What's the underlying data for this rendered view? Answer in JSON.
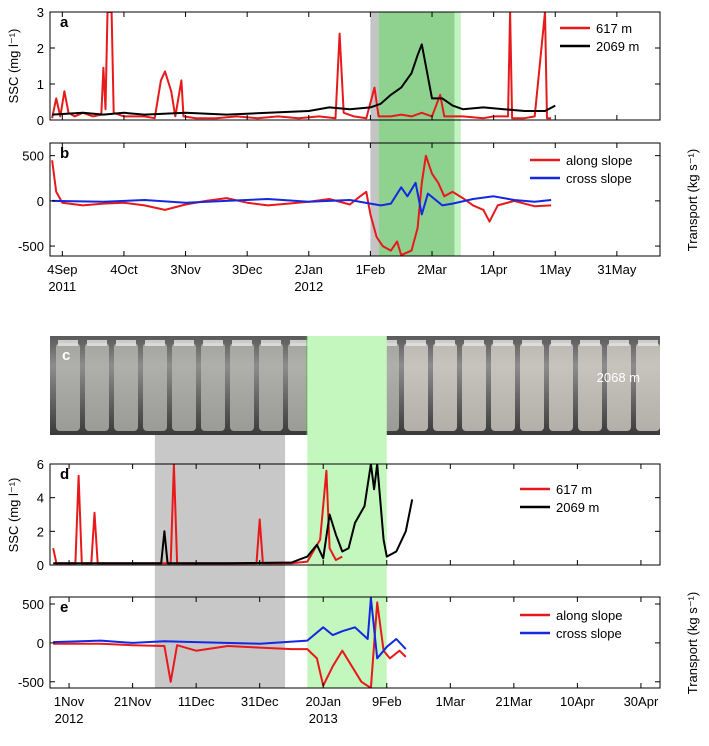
{
  "chart_data": [
    {
      "type": "line",
      "label": "a",
      "ylabel": "SSC (mg l⁻¹)",
      "xlim": [
        -6,
        291
      ],
      "ylim": [
        0,
        3
      ],
      "yticks": [
        0,
        1,
        2,
        3
      ],
      "legend": "upper right",
      "shading": [
        {
          "x0": 150,
          "x1": 154,
          "color": "#c4c4c4"
        },
        {
          "x0": 154,
          "x1": 191,
          "color": "#8fd18f"
        },
        {
          "x0": 191,
          "x1": 194,
          "color": "#c2f3c2"
        }
      ],
      "series": [
        {
          "name": "617 m",
          "color": "#e8191b",
          "x": [
            -5,
            -3,
            -1,
            1,
            3,
            6,
            10,
            15,
            19,
            20,
            21,
            22,
            24,
            25,
            30,
            35,
            40,
            45,
            48,
            50,
            53,
            55,
            58,
            59,
            65,
            75,
            85,
            95,
            105,
            115,
            125,
            133,
            135,
            137,
            142,
            148,
            152,
            154,
            160,
            165,
            170,
            175,
            180,
            184,
            186,
            195,
            205,
            210,
            217,
            218,
            219,
            225,
            230,
            235,
            236,
            238
          ],
          "values": [
            0.05,
            0.6,
            0.1,
            0.8,
            0.2,
            0.1,
            0.2,
            0.1,
            0.15,
            1.45,
            0.3,
            3,
            3,
            0.2,
            0.1,
            0.1,
            0.1,
            0.05,
            1.1,
            1.35,
            0.8,
            0.1,
            1.1,
            0.1,
            0.05,
            0.05,
            0.1,
            0.05,
            0.1,
            0.05,
            0.1,
            0.05,
            2.4,
            0.2,
            0.1,
            0.05,
            0.9,
            0.1,
            0.1,
            0.15,
            0.1,
            0.2,
            0.1,
            0.7,
            0.1,
            0.1,
            0.05,
            0.1,
            0.1,
            3,
            0.05,
            0.05,
            0.1,
            3,
            0.05,
            0.05
          ]
        },
        {
          "name": "2069 m",
          "color": "#000000",
          "x": [
            -5,
            10,
            20,
            30,
            40,
            60,
            80,
            100,
            120,
            130,
            140,
            150,
            155,
            160,
            165,
            170,
            173,
            175,
            177,
            180,
            185,
            190,
            195,
            205,
            215,
            225,
            235,
            240
          ],
          "values": [
            0.15,
            0.2,
            0.15,
            0.2,
            0.15,
            0.2,
            0.15,
            0.2,
            0.25,
            0.35,
            0.3,
            0.35,
            0.45,
            0.7,
            0.9,
            1.3,
            1.8,
            2.1,
            1.5,
            0.6,
            0.6,
            0.4,
            0.3,
            0.35,
            0.3,
            0.25,
            0.25,
            0.4
          ]
        }
      ]
    },
    {
      "type": "line",
      "label": "b",
      "ylabel": "Transport (kg s⁻¹)",
      "xlim": [
        -6,
        291
      ],
      "ylim": [
        -610,
        640
      ],
      "yticks": [
        -500,
        0,
        500
      ],
      "legend": "upper right",
      "xticks": [
        {
          "value": 0,
          "label": "4Sep"
        },
        {
          "value": 30,
          "label": "4Oct"
        },
        {
          "value": 60,
          "label": "3Nov"
        },
        {
          "value": 90,
          "label": "3Dec"
        },
        {
          "value": 120,
          "label": "2Jan"
        },
        {
          "value": 150,
          "label": "1Feb"
        },
        {
          "value": 180,
          "label": "2Mar"
        },
        {
          "value": 210,
          "label": "1Apr"
        },
        {
          "value": 240,
          "label": "1May"
        },
        {
          "value": 270,
          "label": "31May"
        }
      ],
      "x_year_labels": [
        {
          "value": 0,
          "label": "2011"
        },
        {
          "value": 120,
          "label": "2012"
        }
      ],
      "series": [
        {
          "name": "along slope",
          "color": "#e8191b",
          "x": [
            -5,
            -3,
            0,
            10,
            20,
            30,
            40,
            50,
            60,
            70,
            80,
            90,
            100,
            110,
            120,
            130,
            140,
            145,
            148,
            150,
            153,
            156,
            160,
            163,
            165,
            170,
            173,
            175,
            177,
            180,
            183,
            186,
            190,
            195,
            200,
            205,
            208,
            212,
            220,
            230,
            238
          ],
          "values": [
            450,
            100,
            -20,
            -50,
            -30,
            -20,
            -50,
            -100,
            -40,
            0,
            30,
            -20,
            -50,
            -30,
            -10,
            20,
            -40,
            50,
            100,
            -150,
            -400,
            -500,
            -550,
            -450,
            -600,
            -550,
            -300,
            200,
            500,
            300,
            200,
            50,
            100,
            30,
            -50,
            -100,
            -230,
            -50,
            0,
            -60,
            -50
          ]
        },
        {
          "name": "cross slope",
          "color": "#1428e0",
          "x": [
            -5,
            20,
            40,
            60,
            80,
            100,
            120,
            140,
            150,
            155,
            160,
            165,
            168,
            172,
            175,
            178,
            185,
            190,
            200,
            210,
            220,
            230,
            238
          ],
          "values": [
            0,
            -10,
            10,
            -20,
            0,
            20,
            -10,
            10,
            -30,
            -50,
            -30,
            150,
            50,
            200,
            -150,
            80,
            -50,
            -30,
            20,
            50,
            10,
            -10,
            10
          ]
        }
      ]
    },
    {
      "type": "line",
      "label": "d",
      "ylabel": "SSC (mg l⁻¹)",
      "xlim": [
        -6,
        186
      ],
      "ylim": [
        0,
        6
      ],
      "yticks": [
        0,
        2,
        4,
        6
      ],
      "legend": "center right",
      "shading": [
        {
          "x0": 27,
          "x1": 68,
          "color": "#c8c8c8"
        },
        {
          "x0": 75,
          "x1": 100,
          "color": "#c4f7bd"
        }
      ],
      "series": [
        {
          "name": "617 m",
          "color": "#e8191b",
          "x": [
            -5,
            -4,
            2,
            3,
            4,
            7,
            8,
            9,
            20,
            30,
            32,
            33,
            34,
            50,
            59,
            60,
            61,
            70,
            75,
            79,
            81,
            82,
            84,
            86
          ],
          "values": [
            1,
            0.1,
            0.1,
            5.3,
            0.1,
            0.1,
            3.1,
            0.1,
            0.1,
            0.1,
            0.1,
            6,
            0.1,
            0.1,
            0.1,
            2.7,
            0.1,
            0.1,
            0.2,
            1.5,
            5.6,
            1,
            0.3,
            0.5
          ]
        },
        {
          "name": "2069 m",
          "color": "#000000",
          "x": [
            -5,
            20,
            29,
            30,
            31,
            50,
            70,
            75,
            78,
            80,
            82,
            84,
            86,
            88,
            90,
            93,
            95,
            96,
            97,
            99,
            100,
            103,
            106,
            108
          ],
          "values": [
            0.1,
            0.1,
            0.1,
            2,
            0.1,
            0.1,
            0.15,
            0.5,
            1.2,
            0.4,
            3,
            1.8,
            0.8,
            1,
            2.5,
            3.5,
            6,
            4.5,
            6,
            1.5,
            0.5,
            0.8,
            2,
            3.9
          ]
        }
      ]
    },
    {
      "type": "line",
      "label": "e",
      "ylabel": "Transport (kg s⁻¹)",
      "xlim": [
        -6,
        186
      ],
      "ylim": [
        -580,
        590
      ],
      "yticks": [
        -500,
        0,
        500
      ],
      "legend": "center right",
      "xticks": [
        {
          "value": 0,
          "label": "1Nov"
        },
        {
          "value": 20,
          "label": "21Nov"
        },
        {
          "value": 40,
          "label": "11Dec"
        },
        {
          "value": 60,
          "label": "31Dec"
        },
        {
          "value": 80,
          "label": "20Jan"
        },
        {
          "value": 100,
          "label": "9Feb"
        },
        {
          "value": 120,
          "label": "1Mar"
        },
        {
          "value": 140,
          "label": "21Mar"
        },
        {
          "value": 160,
          "label": "10Apr"
        },
        {
          "value": 180,
          "label": "30Apr"
        }
      ],
      "x_year_labels": [
        {
          "value": 0,
          "label": "2012"
        },
        {
          "value": 80,
          "label": "2013"
        }
      ],
      "series": [
        {
          "name": "along slope",
          "color": "#e8191b",
          "x": [
            -5,
            10,
            20,
            30,
            32,
            34,
            40,
            50,
            60,
            70,
            75,
            78,
            80,
            83,
            86,
            89,
            92,
            95,
            97,
            99,
            101,
            104,
            106
          ],
          "values": [
            -10,
            -10,
            -30,
            -40,
            -500,
            -30,
            -100,
            -40,
            -60,
            -80,
            -80,
            -200,
            -550,
            -300,
            -100,
            -300,
            -500,
            -580,
            520,
            -100,
            -200,
            -100,
            -180
          ]
        },
        {
          "name": "cross slope",
          "color": "#1428e0",
          "x": [
            -5,
            10,
            20,
            30,
            40,
            60,
            75,
            80,
            83,
            86,
            90,
            94,
            95,
            97,
            100,
            103,
            106
          ],
          "values": [
            10,
            30,
            0,
            20,
            10,
            -10,
            30,
            200,
            100,
            150,
            200,
            50,
            580,
            -200,
            -50,
            50,
            -80
          ]
        }
      ]
    }
  ],
  "photo": {
    "label": "c",
    "annotation": "2068 m"
  }
}
